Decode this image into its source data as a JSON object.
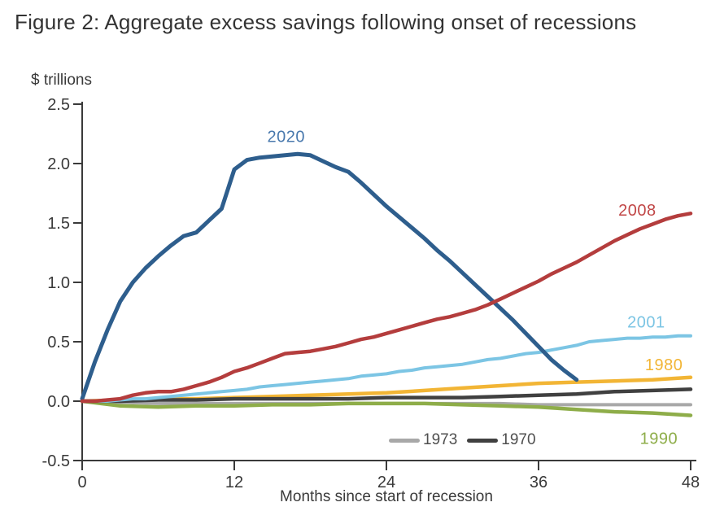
{
  "page": {
    "title": "Figure 2: Aggregate excess savings following onset of recessions"
  },
  "chart_data": {
    "type": "line",
    "title": "Figure 2: Aggregate excess savings following onset of recessions",
    "unit_label": "$ trillions",
    "xlabel": "Months since start of recession",
    "ylabel": "$ trillions",
    "xlim": [
      0,
      48
    ],
    "ylim": [
      -0.5,
      2.5
    ],
    "x_ticks": [
      0,
      12,
      24,
      36,
      48
    ],
    "y_ticks": [
      2.5,
      2.0,
      1.5,
      1.0,
      0.5,
      0.0,
      -0.5
    ],
    "grid": false,
    "legend_position": "bottom-center-inside",
    "axis_color": "#3a3a3a",
    "text_color": "#3a3a3a",
    "series": [
      {
        "name": "1973",
        "color": "#a8a8a8",
        "width": 4,
        "start_month": 0,
        "step": 3,
        "values": [
          0.0,
          -0.01,
          -0.02,
          -0.02,
          -0.02,
          -0.02,
          -0.02,
          -0.02,
          -0.02,
          -0.02,
          -0.02,
          -0.02,
          -0.03,
          -0.03,
          -0.03,
          -0.03,
          -0.03
        ]
      },
      {
        "name": "1990",
        "color": "#8ead49",
        "width": 4.5,
        "start_month": 0,
        "step": 3,
        "label": {
          "text": "1990",
          "x": 44.0,
          "y": -0.36
        },
        "values": [
          0.0,
          -0.04,
          -0.05,
          -0.04,
          -0.04,
          -0.03,
          -0.03,
          -0.02,
          -0.02,
          -0.02,
          -0.03,
          -0.04,
          -0.05,
          -0.07,
          -0.09,
          -0.1,
          -0.12
        ]
      },
      {
        "name": "1980",
        "color": "#f2b535",
        "width": 4.5,
        "start_month": 0,
        "step": 3,
        "label": {
          "text": "1980",
          "x": 44.4,
          "y": 0.26
        },
        "values": [
          0.0,
          0.01,
          0.02,
          0.02,
          0.03,
          0.04,
          0.05,
          0.06,
          0.07,
          0.09,
          0.11,
          0.13,
          0.15,
          0.16,
          0.17,
          0.18,
          0.2
        ]
      },
      {
        "name": "1970",
        "color": "#404040",
        "width": 4.5,
        "start_month": 0,
        "step": 3,
        "values": [
          0.0,
          0.0,
          0.01,
          0.01,
          0.02,
          0.02,
          0.02,
          0.02,
          0.03,
          0.03,
          0.03,
          0.04,
          0.05,
          0.06,
          0.08,
          0.09,
          0.1
        ]
      },
      {
        "name": "2001",
        "color": "#7cc5e4",
        "width": 4,
        "start_month": 0,
        "step": 1,
        "label": {
          "text": "2001",
          "x": 43.0,
          "y": 0.62
        },
        "values": [
          0.0,
          0.0,
          0.0,
          0.01,
          0.02,
          0.02,
          0.03,
          0.04,
          0.05,
          0.06,
          0.07,
          0.08,
          0.09,
          0.1,
          0.12,
          0.13,
          0.14,
          0.15,
          0.16,
          0.17,
          0.18,
          0.19,
          0.21,
          0.22,
          0.23,
          0.25,
          0.26,
          0.28,
          0.29,
          0.3,
          0.31,
          0.33,
          0.35,
          0.36,
          0.38,
          0.4,
          0.41,
          0.43,
          0.45,
          0.47,
          0.5,
          0.51,
          0.52,
          0.53,
          0.53,
          0.54,
          0.54,
          0.55,
          0.55
        ]
      },
      {
        "name": "2020",
        "color": "#2e5e8d",
        "label_color": "#4878ad",
        "width": 5,
        "start_month": 0,
        "step": 1,
        "label": {
          "text": "2020",
          "x": 14.6,
          "y": 2.18
        },
        "values": [
          0.02,
          0.33,
          0.6,
          0.84,
          1.0,
          1.12,
          1.22,
          1.31,
          1.39,
          1.42,
          1.52,
          1.62,
          1.95,
          2.03,
          2.05,
          2.06,
          2.07,
          2.08,
          2.07,
          2.02,
          1.97,
          1.93,
          1.84,
          1.74,
          1.64,
          1.55,
          1.46,
          1.37,
          1.27,
          1.18,
          1.08,
          0.98,
          0.88,
          0.78,
          0.68,
          0.57,
          0.46,
          0.35,
          0.26,
          0.18
        ]
      },
      {
        "name": "2008",
        "color": "#b43d3d",
        "label_color": "#c14747",
        "width": 4.5,
        "start_month": 0,
        "step": 1,
        "label": {
          "text": "2008",
          "x": 42.3,
          "y": 1.56
        },
        "values": [
          0.0,
          0.0,
          0.01,
          0.02,
          0.05,
          0.07,
          0.08,
          0.08,
          0.1,
          0.13,
          0.16,
          0.2,
          0.25,
          0.28,
          0.32,
          0.36,
          0.4,
          0.41,
          0.42,
          0.44,
          0.46,
          0.49,
          0.52,
          0.54,
          0.57,
          0.6,
          0.63,
          0.66,
          0.69,
          0.71,
          0.74,
          0.77,
          0.81,
          0.86,
          0.91,
          0.96,
          1.01,
          1.07,
          1.12,
          1.17,
          1.23,
          1.29,
          1.35,
          1.4,
          1.45,
          1.49,
          1.53,
          1.56,
          1.58
        ]
      }
    ],
    "legend": {
      "items": [
        {
          "label": "1973",
          "color": "#a8a8a8"
        },
        {
          "label": "1970",
          "color": "#404040"
        }
      ]
    }
  }
}
